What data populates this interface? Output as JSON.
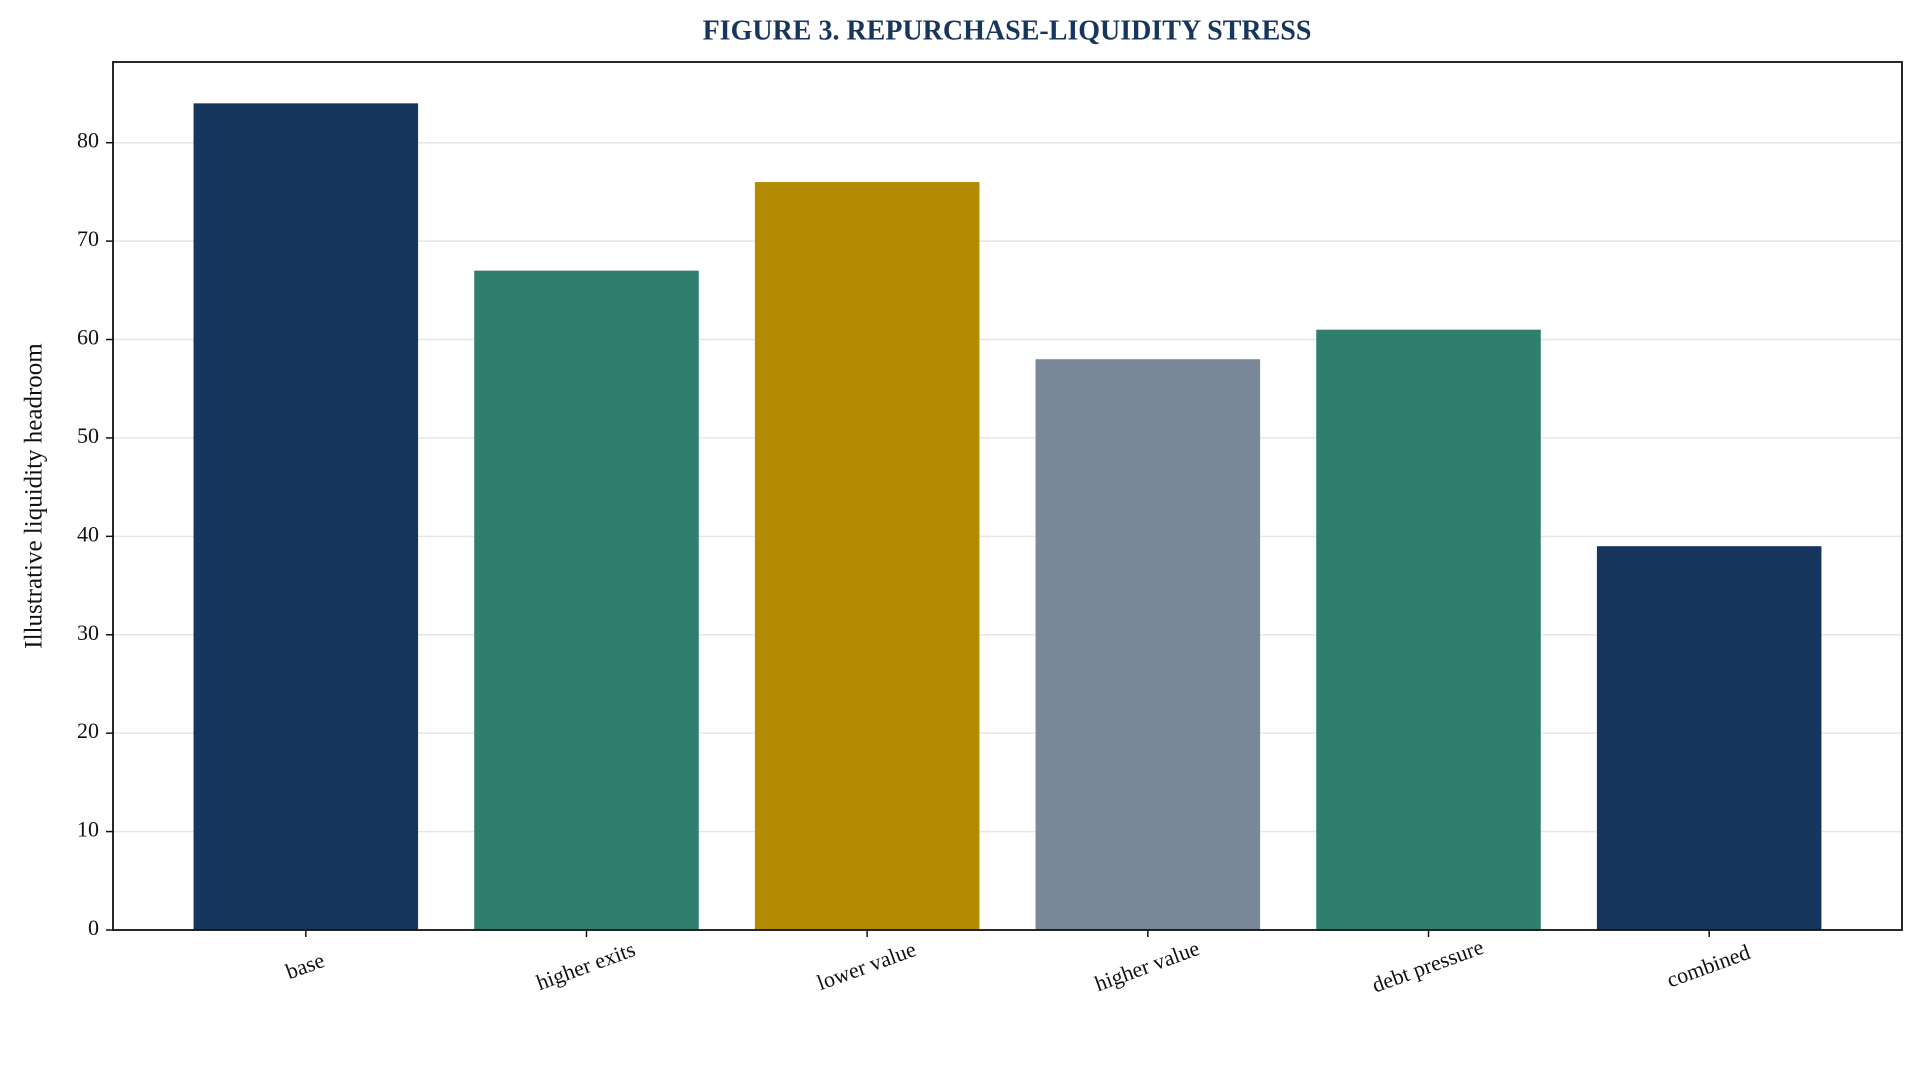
{
  "chart_data": {
    "type": "bar",
    "title": "FIGURE 3. REPURCHASE-LIQUIDITY STRESS",
    "y_label": "Illustrative liquidity headroom",
    "categories": [
      "base",
      "higher exits",
      "lower value",
      "higher value",
      "debt pressure",
      "combined"
    ],
    "values": [
      84,
      67,
      76,
      58,
      61,
      39
    ],
    "colors": [
      "#17365d",
      "#2e7f6f",
      "#b38a00",
      "#7a8798",
      "#2e7f6f",
      "#17365d"
    ],
    "ylim": [
      0,
      88.2
    ],
    "yticks": [
      0,
      10,
      20,
      30,
      40,
      50,
      60,
      70,
      80
    ],
    "grid": true
  }
}
